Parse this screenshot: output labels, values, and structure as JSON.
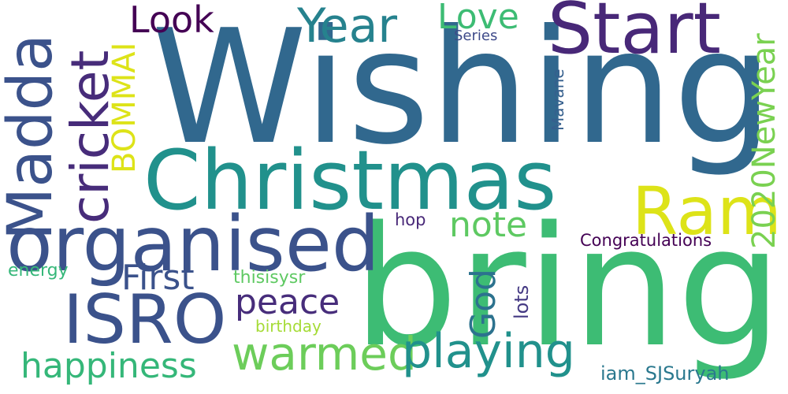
{
  "words": {
    "wishing": {
      "text": "Wishing",
      "color": "#31688e"
    },
    "bring": {
      "text": "bring",
      "color": "#3dbc74"
    },
    "christmas": {
      "text": "Christmas",
      "color": "#21918c"
    },
    "organised": {
      "text": "organised",
      "color": "#3b528b"
    },
    "isro": {
      "text": "ISRO",
      "color": "#3b528b"
    },
    "madda": {
      "text": "Madda",
      "color": "#3b528b"
    },
    "start": {
      "text": "Start",
      "color": "#482878"
    },
    "ram": {
      "text": "Ram",
      "color": "#dde318"
    },
    "cricket": {
      "text": "cricket",
      "color": "#472c7a"
    },
    "year": {
      "text": "Year",
      "color": "#26828e"
    },
    "look": {
      "text": "Look",
      "color": "#440154"
    },
    "love": {
      "text": "Love",
      "color": "#3dbc74"
    },
    "series": {
      "text": "Series",
      "color": "#3e4a89"
    },
    "bommai": {
      "text": "BOMMAI",
      "color": "#dde318"
    },
    "mavane": {
      "text": "Mavane",
      "color": "#355f8d"
    },
    "newyear": {
      "text": "2020NewYear",
      "color": "#7ad151"
    },
    "note": {
      "text": "note",
      "color": "#5ec962"
    },
    "hop": {
      "text": "hop",
      "color": "#482878"
    },
    "congratulations": {
      "text": "Congratulations",
      "color": "#440154"
    },
    "first": {
      "text": "First",
      "color": "#3b528b"
    },
    "peace": {
      "text": "peace",
      "color": "#472d7b"
    },
    "god": {
      "text": "God",
      "color": "#2c728e"
    },
    "lots": {
      "text": "lots",
      "color": "#443983"
    },
    "energy": {
      "text": "energy",
      "color": "#35b779"
    },
    "thisisysr": {
      "text": "thisisysr",
      "color": "#5ec962"
    },
    "birthday": {
      "text": "birthday",
      "color": "#a5db36"
    },
    "warmed": {
      "text": "warmed",
      "color": "#6ccd5a"
    },
    "playing": {
      "text": "playing",
      "color": "#21918c"
    },
    "happiness": {
      "text": "happiness",
      "color": "#35b779"
    },
    "iam": {
      "text": "iam_SJSuryah",
      "color": "#2a788e"
    }
  }
}
